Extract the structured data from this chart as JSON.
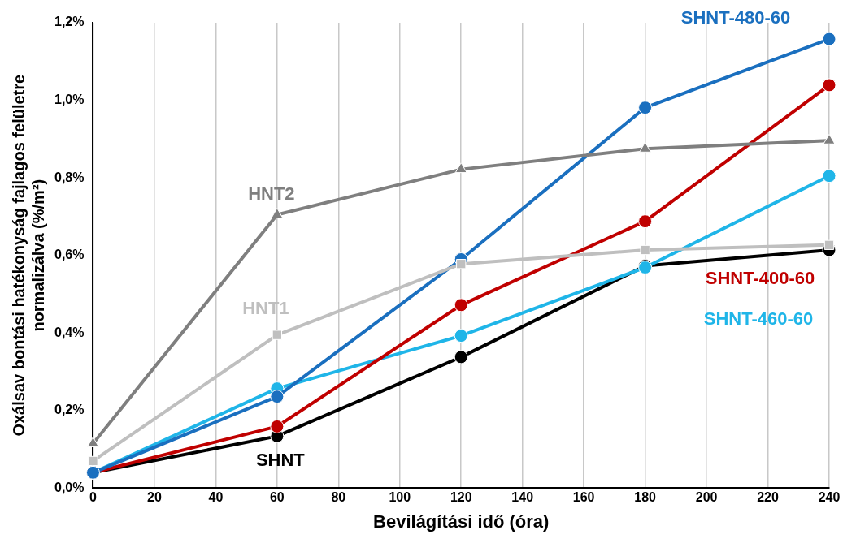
{
  "chart_data": {
    "type": "line",
    "xlabel": "Bevilágítási idő (óra)",
    "ylabel": "Oxálsav bontási hatékonyság fajlagos felületre normalizálva (%/m²)",
    "x": [
      0,
      60,
      120,
      180,
      240
    ],
    "series": [
      {
        "name": "HNT2",
        "color": "#7f7f7f",
        "marker": "triangle",
        "values": [
          0.115,
          0.705,
          0.822,
          0.875,
          0.896
        ]
      },
      {
        "name": "HNT1",
        "color": "#bfbfbf",
        "marker": "square",
        "values": [
          0.07,
          0.395,
          0.578,
          0.614,
          0.627
        ]
      },
      {
        "name": "SHNT-480-60",
        "color": "#1a6fbf",
        "marker": "circle",
        "values": [
          0.04,
          0.236,
          0.59,
          0.981,
          1.158
        ]
      },
      {
        "name": "SHNT-400-60",
        "color": "#c00000",
        "marker": "circle",
        "values": [
          0.04,
          0.159,
          0.472,
          0.688,
          1.039
        ]
      },
      {
        "name": "SHNT-460-60",
        "color": "#1fb5e8",
        "marker": "circle",
        "values": [
          0.04,
          0.257,
          0.393,
          0.569,
          0.805
        ]
      },
      {
        "name": "SHNT",
        "color": "#000000",
        "marker": "circle",
        "values": [
          0.04,
          0.134,
          0.338,
          0.573,
          0.614
        ]
      }
    ],
    "xlim": [
      0,
      240
    ],
    "xticks": [
      0,
      20,
      40,
      60,
      80,
      100,
      120,
      140,
      160,
      180,
      200,
      220,
      240
    ],
    "ylim": [
      0,
      1.2
    ],
    "yticks": [
      {
        "value": 0,
        "label": "0,0%"
      },
      {
        "value": 0.2,
        "label": "0,2%"
      },
      {
        "value": 0.4,
        "label": "0,4%"
      },
      {
        "value": 0.6,
        "label": "0,6%"
      },
      {
        "value": 0.8,
        "label": "0,8%"
      },
      {
        "value": 1.0,
        "label": "1,0%"
      },
      {
        "value": 1.2,
        "label": "1,2%"
      }
    ],
    "grid": "x",
    "legend": false
  }
}
